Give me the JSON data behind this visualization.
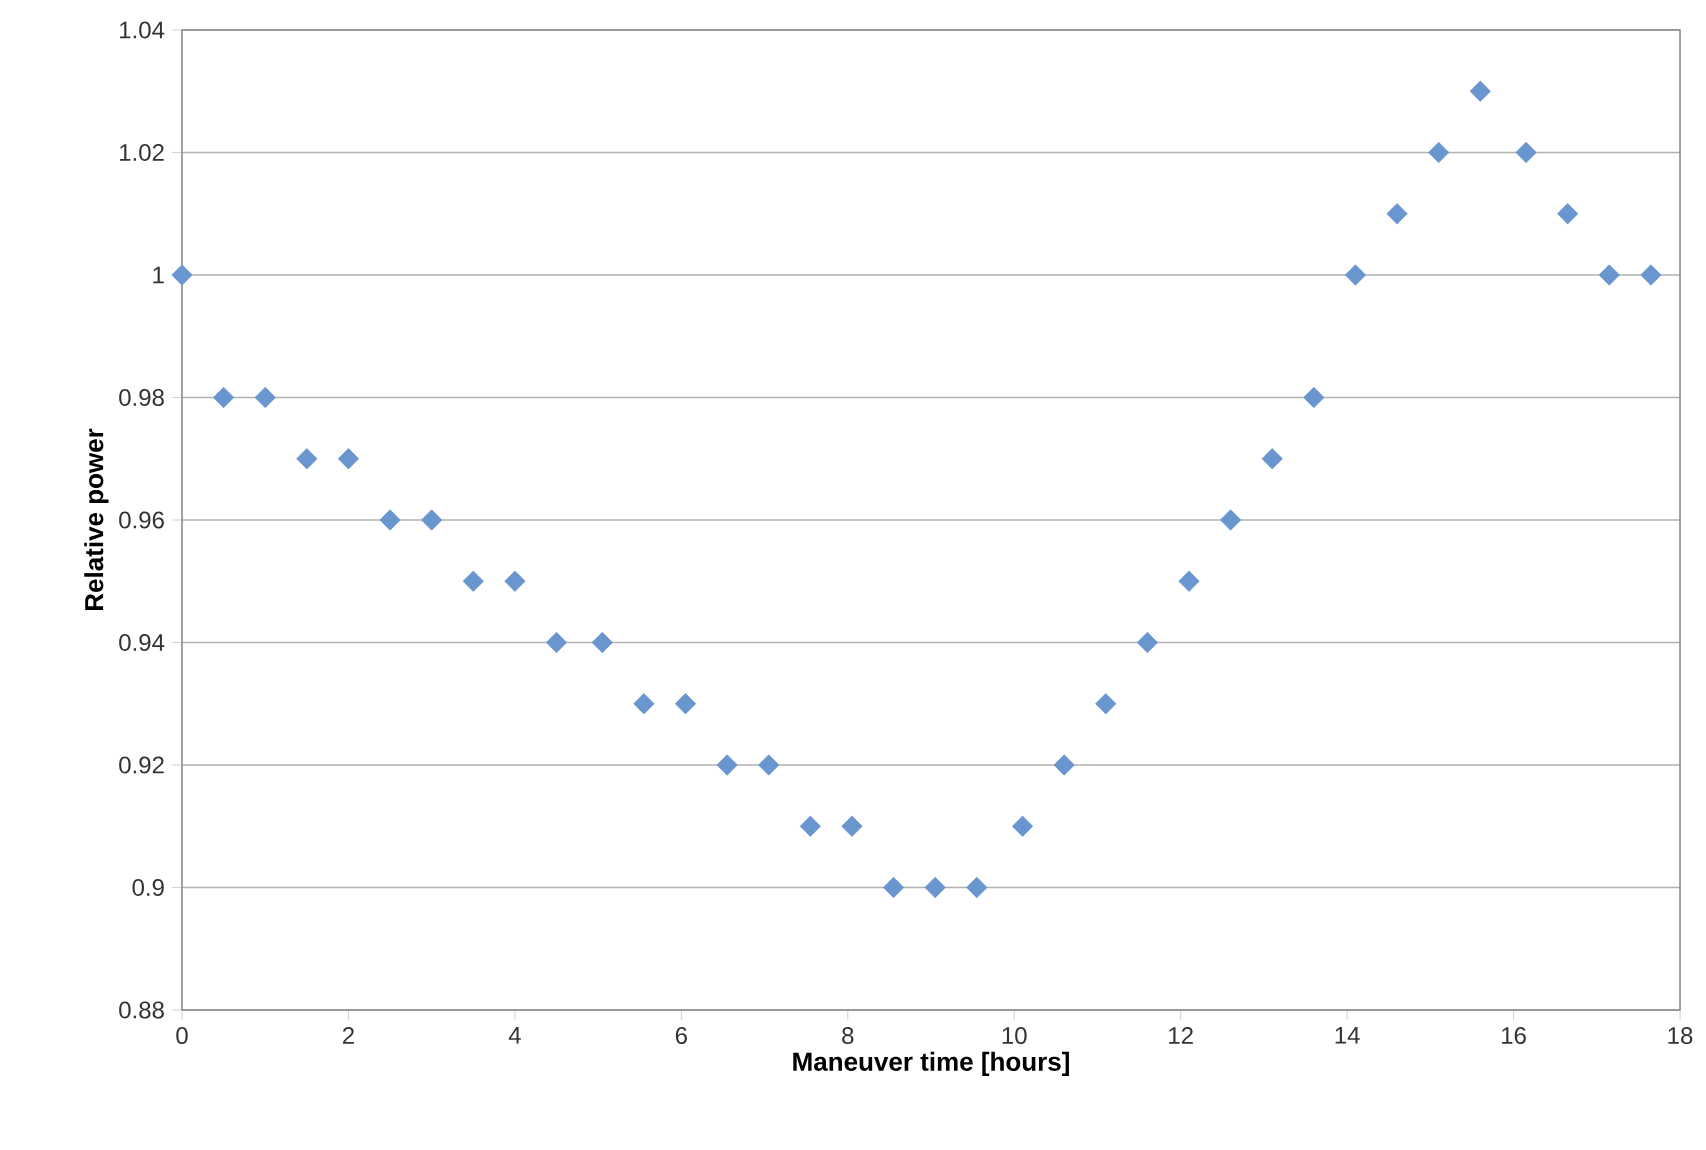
{
  "chart_data": {
    "type": "scatter",
    "xlabel": "Maneuver time [hours]",
    "ylabel": "Relative power",
    "x": [
      0,
      0.5,
      1,
      1.5,
      2,
      2.5,
      3,
      3.5,
      4,
      4.5,
      5.05,
      5.55,
      6.05,
      6.55,
      7.05,
      7.55,
      8.05,
      8.55,
      9.05,
      9.55,
      10.1,
      10.6,
      11.1,
      11.6,
      12.1,
      12.6,
      13.1,
      13.6,
      14.1,
      14.6,
      15.1,
      15.6,
      16.15,
      16.65,
      17.15,
      17.65
    ],
    "series": [
      {
        "color": "#6a96d0",
        "values": [
          1,
          0.98,
          0.98,
          0.97,
          0.97,
          0.96,
          0.96,
          0.95,
          0.95,
          0.94,
          0.94,
          0.93,
          0.93,
          0.92,
          0.92,
          0.91,
          0.91,
          0.9,
          0.9,
          0.9,
          0.91,
          0.92,
          0.93,
          0.94,
          0.95,
          0.96,
          0.97,
          0.98,
          1,
          1.01,
          1.02,
          1.03,
          1.02,
          1.01,
          1,
          1
        ]
      }
    ],
    "xlim": [
      0,
      18
    ],
    "ylim": [
      0.88,
      1.04
    ],
    "xticks": [
      0,
      2,
      4,
      6,
      8,
      10,
      12,
      14,
      16,
      18
    ],
    "yticks": [
      0.88,
      0.9,
      0.92,
      0.94,
      0.96,
      0.98,
      1,
      1.02,
      1.04
    ],
    "grid": "y",
    "marker": "diamond"
  }
}
